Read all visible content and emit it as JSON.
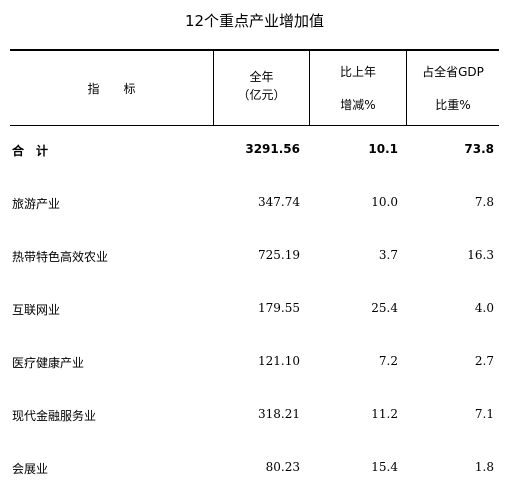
{
  "title": "12个重点产业增加值",
  "header": {
    "indicator": "指　　标",
    "annual_line1": "全年",
    "annual_line2": "（亿元）",
    "growth_line1": "比上年",
    "growth_line2": "增减%",
    "share_line1": "占全省GDP",
    "share_line2": "比重%"
  },
  "total": {
    "name": "合　计",
    "value": "3291.56",
    "growth": "10.1",
    "share": "73.8"
  },
  "rows": [
    {
      "name": "旅游产业",
      "value": "347.74",
      "growth": "10.0",
      "share": "7.8"
    },
    {
      "name": "热带特色高效农业",
      "value": "725.19",
      "growth": "3.7",
      "share": "16.3"
    },
    {
      "name": "互联网业",
      "value": "179.55",
      "growth": "25.4",
      "share": "4.0"
    },
    {
      "name": "医疗健康产业",
      "value": "121.10",
      "growth": "7.2",
      "share": "2.7"
    },
    {
      "name": "现代金融服务业",
      "value": "318.21",
      "growth": "11.2",
      "share": "7.1"
    },
    {
      "name": "会展业",
      "value": "80.23",
      "growth": "15.4",
      "share": "1.8"
    }
  ]
}
